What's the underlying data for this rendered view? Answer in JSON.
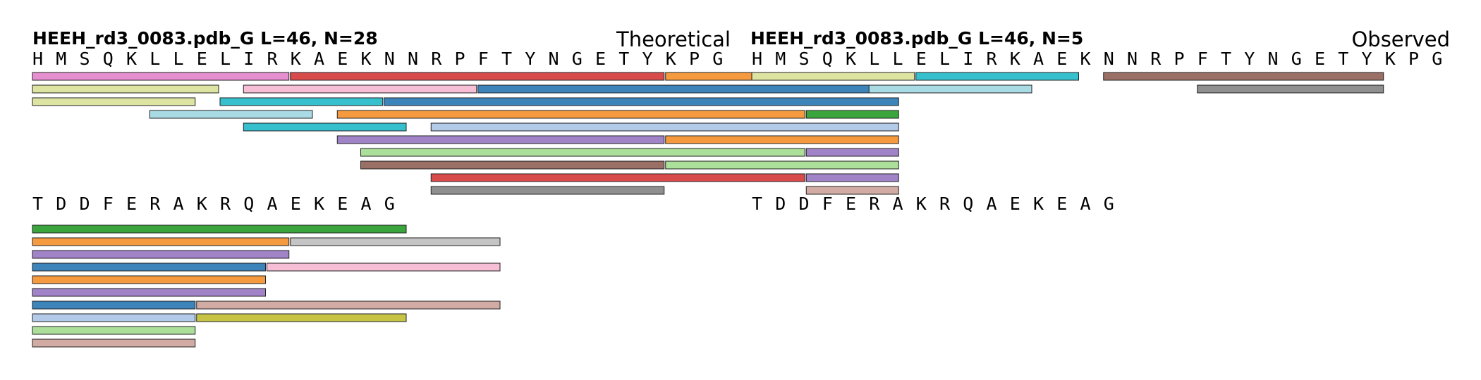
{
  "panels": [
    {
      "id": "theoretical",
      "title": "HEEH_rd3_0083.pdb_G  L=46, N=28",
      "label": "Theoretical",
      "rows": [
        {
          "sequence": "HMSQKLLELIRKAEKNNRPFTYNGETYKPG",
          "start": 1,
          "peptides": [
            {
              "start": 1,
              "end": 11,
              "color": "#e58fd0"
            },
            {
              "start": 12,
              "end": 27,
              "color": "#d94a4b"
            },
            {
              "start": 28,
              "end": 37,
              "color": "#f59a3e"
            },
            {
              "start": 1,
              "end": 8,
              "color": "#dde3a0"
            },
            {
              "start": 10,
              "end": 19,
              "color": "#f7bfd6"
            },
            {
              "start": 20,
              "end": 37,
              "color": "#3d84bb"
            },
            {
              "start": 1,
              "end": 7,
              "color": "#dde3a0"
            },
            {
              "start": 9,
              "end": 15,
              "color": "#36c0cd"
            },
            {
              "start": 16,
              "end": 37,
              "color": "#3d84bb"
            },
            {
              "start": 6,
              "end": 12,
              "color": "#a9dbe4"
            },
            {
              "start": 14,
              "end": 33,
              "color": "#f59a3e"
            },
            {
              "start": 34,
              "end": 37,
              "color": "#3aa53c"
            },
            {
              "start": 10,
              "end": 16,
              "color": "#36c0cd"
            },
            {
              "start": 18,
              "end": 37,
              "color": "#b3cbe9"
            },
            {
              "start": 14,
              "end": 27,
              "color": "#a183c7"
            },
            {
              "start": 28,
              "end": 37,
              "color": "#f59a3e"
            },
            {
              "start": 15,
              "end": 33,
              "color": "#acdf99"
            },
            {
              "start": 34,
              "end": 37,
              "color": "#a183c7"
            },
            {
              "start": 15,
              "end": 27,
              "color": "#9a6f66"
            },
            {
              "start": 28,
              "end": 37,
              "color": "#acdf99"
            },
            {
              "start": 18,
              "end": 33,
              "color": "#d94a4b"
            },
            {
              "start": 34,
              "end": 37,
              "color": "#a183c7"
            },
            {
              "start": 18,
              "end": 27,
              "color": "#8f8f8f"
            },
            {
              "start": 34,
              "end": 37,
              "color": "#d2aca4"
            }
          ]
        },
        {
          "sequence": "TDDFERAKRQAEKEAG",
          "start": 31,
          "peptides": [
            {
              "start": 31,
              "end": 46,
              "color": "#3aa53c"
            },
            {
              "start": 31,
              "end": 41,
              "color": "#f59a3e"
            },
            {
              "start": 42,
              "end": 50,
              "color": "#c4c4c4"
            },
            {
              "start": 31,
              "end": 41,
              "color": "#a183c7"
            },
            {
              "start": 31,
              "end": 40,
              "color": "#3d84bb"
            },
            {
              "start": 41,
              "end": 50,
              "color": "#f7bfd6"
            },
            {
              "start": 31,
              "end": 40,
              "color": "#f59a3e"
            },
            {
              "start": 31,
              "end": 40,
              "color": "#a183c7"
            },
            {
              "start": 31,
              "end": 37,
              "color": "#3d84bb"
            },
            {
              "start": 38,
              "end": 50,
              "color": "#d2aca4"
            },
            {
              "start": 31,
              "end": 37,
              "color": "#b3cbe9"
            },
            {
              "start": 38,
              "end": 46,
              "color": "#c7c445"
            },
            {
              "start": 31,
              "end": 37,
              "color": "#acdf99"
            },
            {
              "start": 31,
              "end": 37,
              "color": "#d2aca4"
            }
          ]
        }
      ]
    },
    {
      "id": "observed",
      "title": "HEEH_rd3_0083.pdb_G  L=46, N=5",
      "label": "Observed",
      "rows": [
        {
          "sequence": "HMSQKLLELIRKAEKNNRPFTYNGETYKPG",
          "start": 1,
          "peptides": [
            {
              "start": 1,
              "end": 7,
              "color": "#dde3a0"
            },
            {
              "start": 8,
              "end": 14,
              "color": "#36c0cd"
            },
            {
              "start": 16,
              "end": 27,
              "color": "#9a6f66"
            },
            {
              "start": 6,
              "end": 12,
              "color": "#a9dbe4"
            },
            {
              "start": 20,
              "end": 27,
              "color": "#8f8f8f"
            }
          ]
        },
        {
          "sequence": "TDDFERAKRQAEKEAG",
          "start": 31,
          "peptides": []
        }
      ]
    }
  ]
}
